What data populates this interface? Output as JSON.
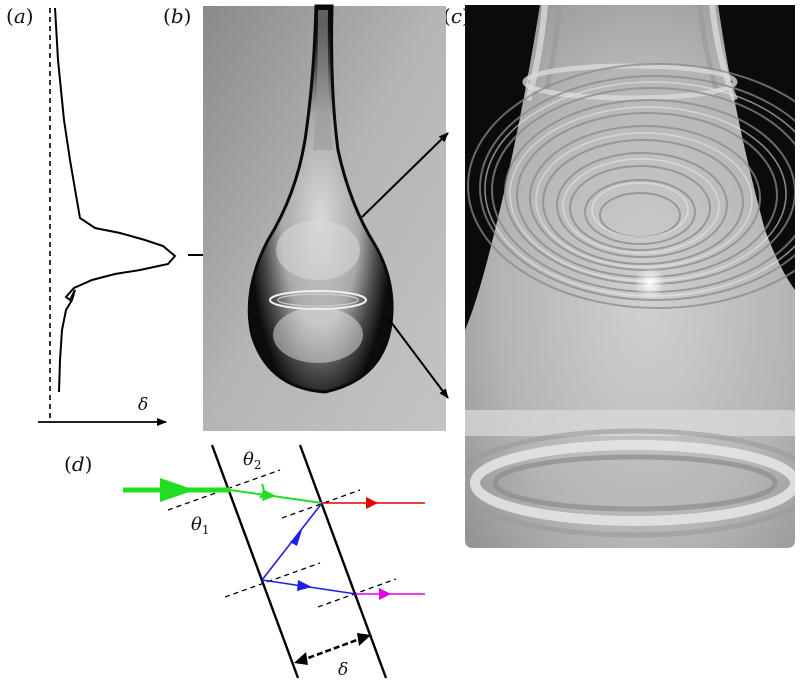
{
  "panels": {
    "a": {
      "open": "(",
      "letter": "a",
      "close": ")"
    },
    "b": {
      "open": "(",
      "letter": "b",
      "close": ")"
    },
    "c": {
      "open": "(",
      "letter": "c",
      "close": ")"
    },
    "d": {
      "open": "(",
      "letter": "d",
      "close": ")"
    }
  },
  "profile": {
    "axis_label": "δ"
  },
  "diagram": {
    "theta1_sym": "θ",
    "theta1_sub": "1",
    "theta2_sym": "θ",
    "theta2_sub": "2",
    "thickness_label": "δ"
  },
  "colors": {
    "incident": "#22dd22",
    "reflected_internal": "#1f1fe6",
    "transmitted_1": "#e60000",
    "transmitted_2": "#e600e6",
    "line": "#000000"
  }
}
